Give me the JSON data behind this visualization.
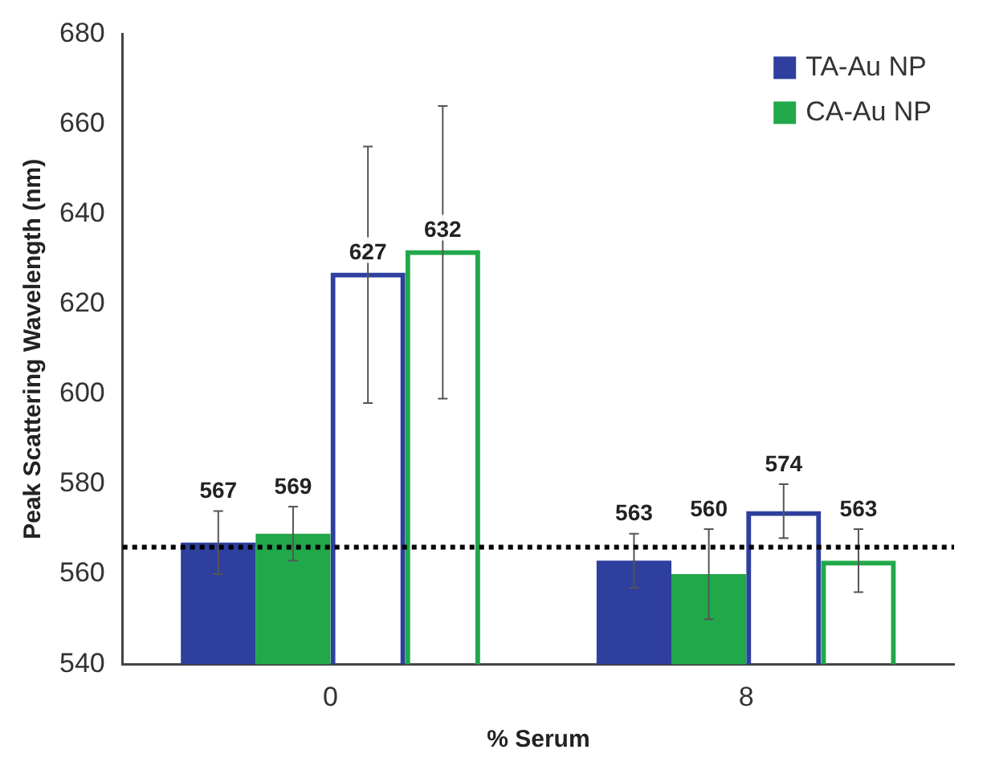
{
  "chart_data": {
    "type": "bar",
    "xlabel": "% Serum",
    "ylabel": "Peak Scattering Wavelength (nm)",
    "categories": [
      "0",
      "8"
    ],
    "series": [
      {
        "name": "TA-Au NP",
        "color": "#2e3f9e",
        "values": [
          567,
          563
        ],
        "errors": [
          [
            560,
            574
          ],
          [
            557,
            569
          ]
        ]
      },
      {
        "name": "CA-Au NP",
        "color": "#21a84a",
        "values": [
          569,
          560
        ],
        "errors": [
          [
            563,
            575
          ],
          [
            550,
            570
          ]
        ]
      },
      {
        "color": "#2e3f9e",
        "values": [
          627,
          574
        ],
        "errors": [
          [
            598,
            655
          ],
          [
            568,
            580
          ]
        ]
      },
      {
        "color": "#21a84a",
        "values": [
          632,
          563
        ],
        "errors": [
          [
            599,
            664
          ],
          [
            556,
            570
          ]
        ]
      }
    ],
    "ylim": [
      540,
      680
    ],
    "yticks": [
      540,
      560,
      580,
      600,
      620,
      640,
      660,
      680
    ],
    "grid": false,
    "legend": "top right",
    "data_labels": true,
    "ref_lines": [
      {
        "axis": "y",
        "value": 566,
        "line_style": "dotted",
        "color": "#000000"
      }
    ]
  }
}
